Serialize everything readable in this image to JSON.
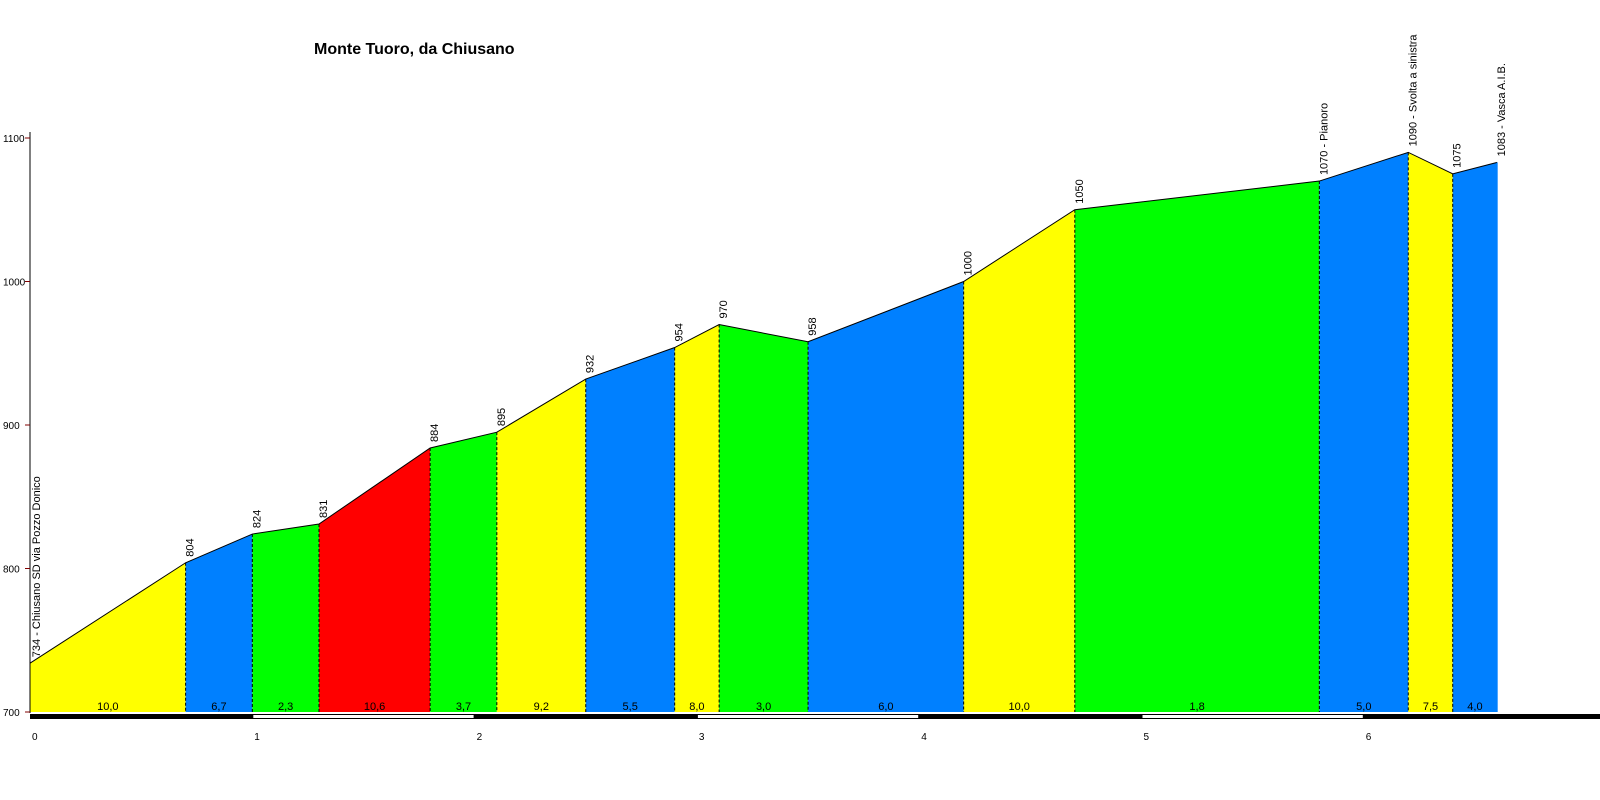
{
  "chart_data": {
    "type": "area",
    "title": "Monte Tuoro, da Chiusano",
    "xlabel": "",
    "ylabel": "",
    "xlim": [
      0,
      7.05
    ],
    "ylim": [
      700,
      1100
    ],
    "y_ticks": [
      700,
      800,
      900,
      1000,
      1100
    ],
    "x_ticks": [
      0,
      1,
      2,
      3,
      4,
      5,
      6
    ],
    "points": [
      {
        "x": 0.0,
        "y": 734,
        "label": "734 - Chiusano SD via Pozzo Donico"
      },
      {
        "x": 0.7,
        "y": 804,
        "label": "804"
      },
      {
        "x": 1.0,
        "y": 824,
        "label": "824"
      },
      {
        "x": 1.3,
        "y": 831,
        "label": "831"
      },
      {
        "x": 1.8,
        "y": 884,
        "label": "884"
      },
      {
        "x": 2.1,
        "y": 895,
        "label": "895"
      },
      {
        "x": 2.5,
        "y": 932,
        "label": "932"
      },
      {
        "x": 2.9,
        "y": 954,
        "label": "954"
      },
      {
        "x": 3.1,
        "y": 970,
        "label": "970"
      },
      {
        "x": 3.5,
        "y": 958,
        "label": "958"
      },
      {
        "x": 4.2,
        "y": 1000,
        "label": "1000"
      },
      {
        "x": 4.7,
        "y": 1050,
        "label": "1050"
      },
      {
        "x": 5.8,
        "y": 1070,
        "label": "1070 - Pianoro"
      },
      {
        "x": 6.2,
        "y": 1090,
        "label": "1090 - Svolta a sinistra"
      },
      {
        "x": 6.4,
        "y": 1075,
        "label": "1075"
      },
      {
        "x": 6.6,
        "y": 1083,
        "label": "1083 - Vasca A.I.B."
      }
    ],
    "segments": [
      {
        "gradient": "10,0",
        "color": "#ffff00"
      },
      {
        "gradient": "6,7",
        "color": "#0080ff"
      },
      {
        "gradient": "2,3",
        "color": "#00ff00"
      },
      {
        "gradient": "10,6",
        "color": "#ff0000"
      },
      {
        "gradient": "3,7",
        "color": "#00ff00"
      },
      {
        "gradient": "9,2",
        "color": "#ffff00"
      },
      {
        "gradient": "5,5",
        "color": "#0080ff"
      },
      {
        "gradient": "8,0",
        "color": "#ffff00"
      },
      {
        "gradient": "3,0",
        "color": "#00ff00"
      },
      {
        "gradient": "6,0",
        "color": "#0080ff"
      },
      {
        "gradient": "10,0",
        "color": "#ffff00"
      },
      {
        "gradient": "1,8",
        "color": "#00ff00"
      },
      {
        "gradient": "5,0",
        "color": "#0080ff"
      },
      {
        "gradient": "7,5",
        "color": "#ffff00"
      },
      {
        "gradient": "4,0",
        "color": "#0080ff"
      }
    ],
    "colors": {
      "axis": "#000000",
      "y_tick_mark": "#800000",
      "outline": "#000000"
    }
  }
}
